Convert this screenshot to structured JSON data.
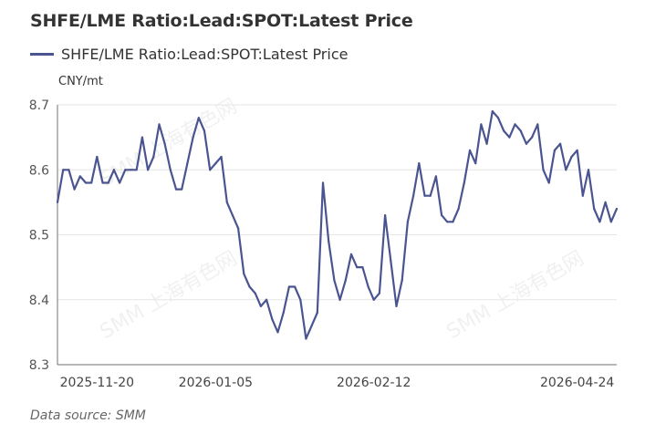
{
  "title": "SHFE/LME Ratio:Lead:SPOT:Latest Price",
  "unit": "CNY/mt",
  "source": "Data source:  SMM",
  "watermark": "SMM 上海有色网",
  "colors": {
    "series": "#4a5490",
    "axis": "#6e7079",
    "grid": "#e6e6e6"
  },
  "chart_data": {
    "type": "line",
    "title": "SHFE/LME Ratio:Lead:SPOT:Latest Price",
    "xlabel": "",
    "ylabel": "CNY/mt",
    "ylim": [
      8.3,
      8.7
    ],
    "yticks": [
      "8.3",
      "8.4",
      "8.5",
      "8.6",
      "8.7"
    ],
    "grid": true,
    "legend": "top-left",
    "x_tick_labels": [
      {
        "index": 7,
        "label": "2025-11-20"
      },
      {
        "index": 28,
        "label": "2026-01-05"
      },
      {
        "index": 56,
        "label": "2026-02-12"
      },
      {
        "index": 92,
        "label": "2026-04-24"
      }
    ],
    "series": [
      {
        "name": "SHFE/LME Ratio:Lead:SPOT:Latest Price",
        "values": [
          8.55,
          8.6,
          8.6,
          8.57,
          8.59,
          8.58,
          8.58,
          8.62,
          8.58,
          8.58,
          8.6,
          8.58,
          8.6,
          8.6,
          8.6,
          8.65,
          8.6,
          8.62,
          8.67,
          8.64,
          8.6,
          8.57,
          8.57,
          8.61,
          8.65,
          8.68,
          8.66,
          8.6,
          8.61,
          8.62,
          8.55,
          8.53,
          8.51,
          8.44,
          8.42,
          8.41,
          8.39,
          8.4,
          8.37,
          8.35,
          8.38,
          8.42,
          8.42,
          8.4,
          8.34,
          8.36,
          8.38,
          8.58,
          8.49,
          8.43,
          8.4,
          8.43,
          8.47,
          8.45,
          8.45,
          8.42,
          8.4,
          8.41,
          8.53,
          8.46,
          8.39,
          8.43,
          8.52,
          8.56,
          8.61,
          8.56,
          8.56,
          8.59,
          8.53,
          8.52,
          8.52,
          8.54,
          8.58,
          8.63,
          8.61,
          8.67,
          8.64,
          8.69,
          8.68,
          8.66,
          8.65,
          8.67,
          8.66,
          8.64,
          8.65,
          8.67,
          8.6,
          8.58,
          8.63,
          8.64,
          8.6,
          8.62,
          8.63,
          8.56,
          8.6,
          8.54,
          8.52,
          8.55,
          8.52,
          8.54
        ]
      }
    ]
  }
}
